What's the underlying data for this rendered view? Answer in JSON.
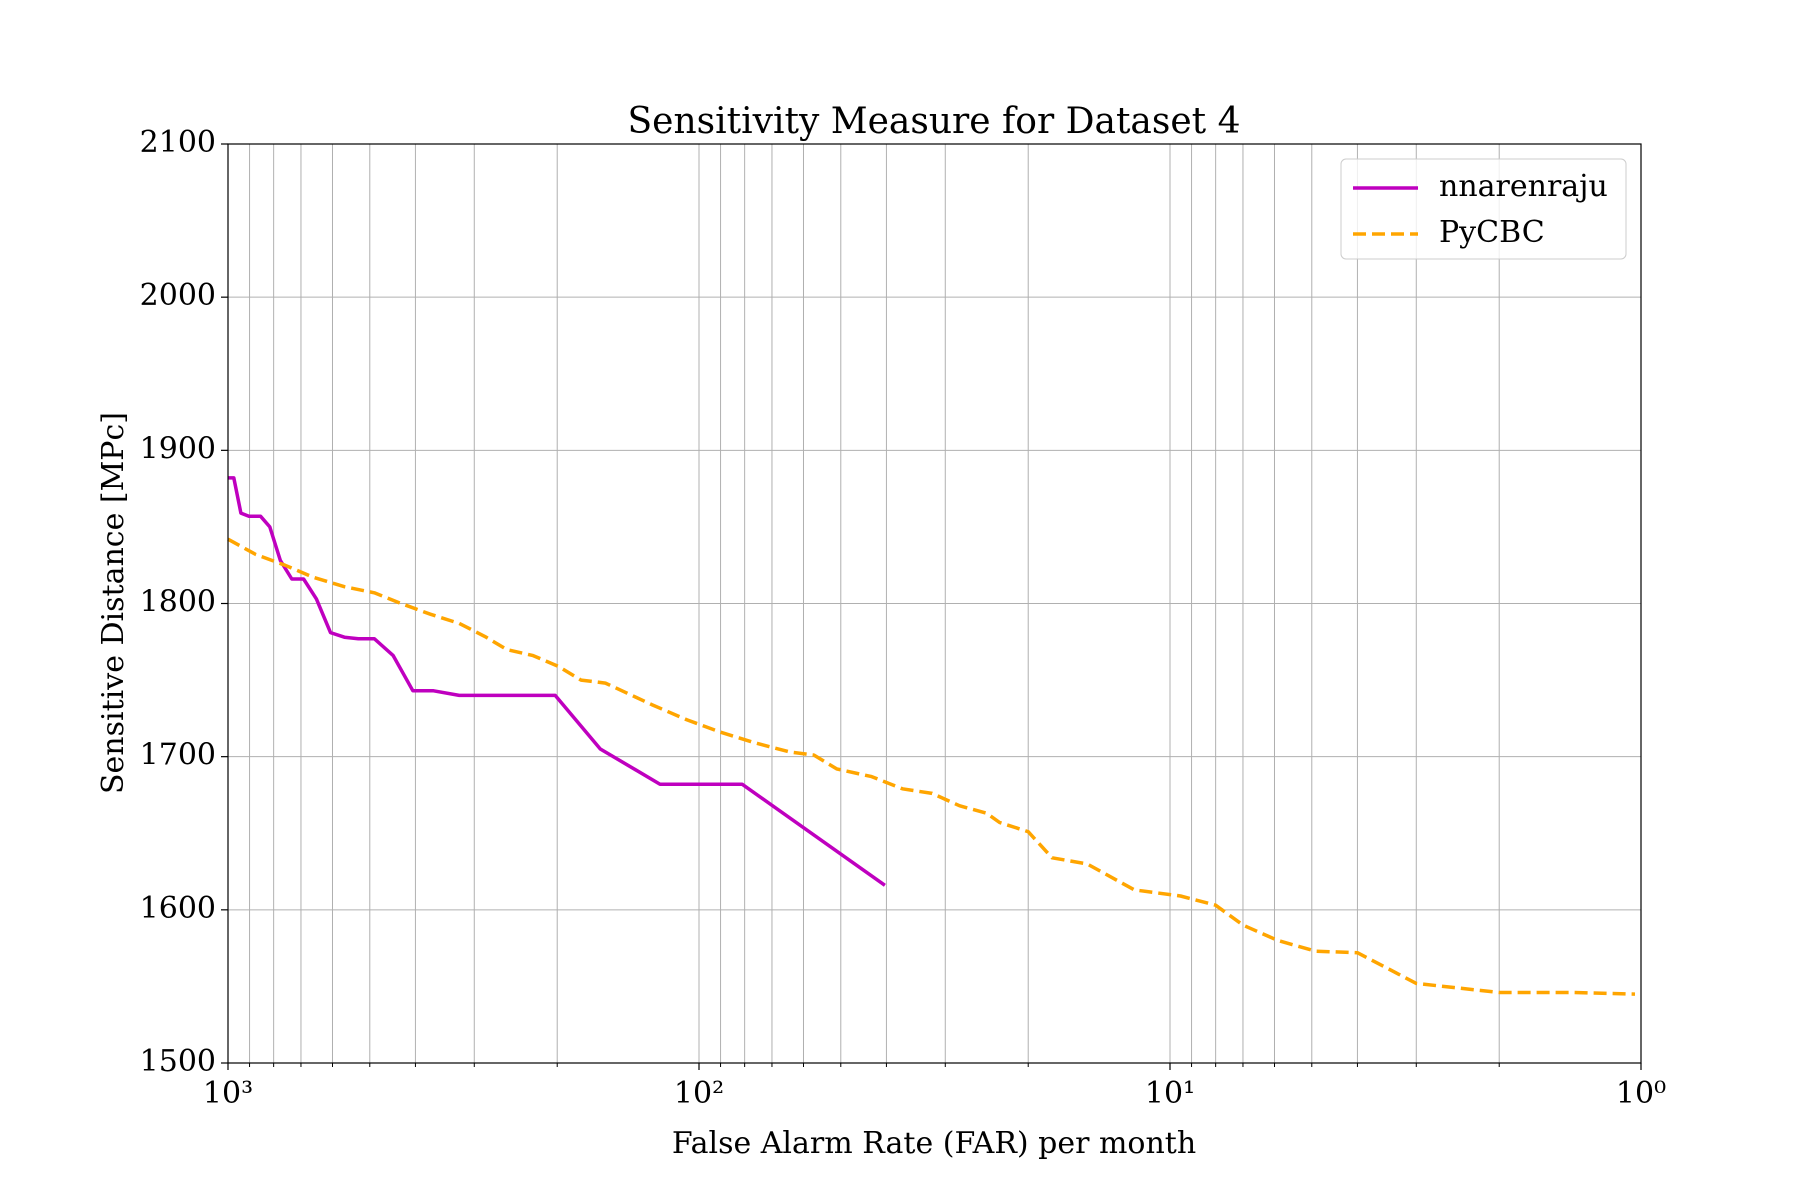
{
  "chart_data": {
    "type": "line",
    "title": "Sensitivity Measure for Dataset 4",
    "xlabel": "False Alarm Rate (FAR) per month",
    "ylabel": "Sensitive Distance [MPc]",
    "xscale": "log",
    "grid": true,
    "legend": "upper right",
    "xlim": [
      1000,
      1
    ],
    "ylim": [
      1500,
      2100
    ],
    "xticks": [
      {
        "value": 1000,
        "label": "10³"
      },
      {
        "value": 100,
        "label": "10²"
      },
      {
        "value": 10,
        "label": "10¹"
      },
      {
        "value": 1,
        "label": "10⁰"
      }
    ],
    "xminorticks": [
      900,
      800,
      700,
      600,
      500,
      400,
      300,
      200,
      90,
      80,
      70,
      60,
      50,
      40,
      30,
      20,
      9,
      8,
      7,
      6,
      5,
      4,
      3,
      2
    ],
    "yticks": [
      1500,
      1600,
      1700,
      1800,
      1900,
      2000,
      2100
    ],
    "series": [
      {
        "name": "nnarenraju",
        "color": "#bf00bf",
        "dash": "solid",
        "x": [
          1000,
          972,
          939,
          903,
          853,
          815,
          774,
          732,
          691,
          649,
          606,
          566,
          529,
          489,
          446,
          405,
          366,
          323,
          202,
          162,
          121,
          81,
          40.3
        ],
        "values": [
          1882,
          1882,
          1859,
          1857,
          1857,
          1850,
          1828,
          1816,
          1816,
          1803,
          1781,
          1778,
          1777,
          1777,
          1766,
          1743,
          1743,
          1740,
          1740,
          1705,
          1682,
          1682,
          1616
        ]
      },
      {
        "name": "PyCBC",
        "color": "#ffa500",
        "dash": "dashed",
        "x": [
          1000,
          873,
          757,
          657,
          566,
          489,
          429,
          372,
          323,
          283,
          256,
          225,
          199,
          178,
          158,
          141,
          126,
          106,
          90,
          76,
          64,
          57,
          51,
          43,
          37,
          32,
          28,
          24.5,
          23,
          20,
          17.8,
          15,
          11.9,
          9.5,
          8.0,
          7.0,
          5.9,
          4.9,
          4.0,
          3.0,
          2.0,
          1.4,
          1.03
        ],
        "values": [
          1842,
          1832,
          1825,
          1817,
          1811,
          1807,
          1800,
          1793,
          1787,
          1778,
          1770,
          1766,
          1759,
          1750,
          1748,
          1741,
          1734,
          1724,
          1716,
          1709,
          1703,
          1701,
          1692,
          1687,
          1679,
          1676,
          1668,
          1663,
          1657,
          1651,
          1634,
          1630,
          1613,
          1609,
          1603,
          1590,
          1580,
          1573,
          1572,
          1552,
          1546,
          1546,
          1545
        ]
      }
    ]
  }
}
